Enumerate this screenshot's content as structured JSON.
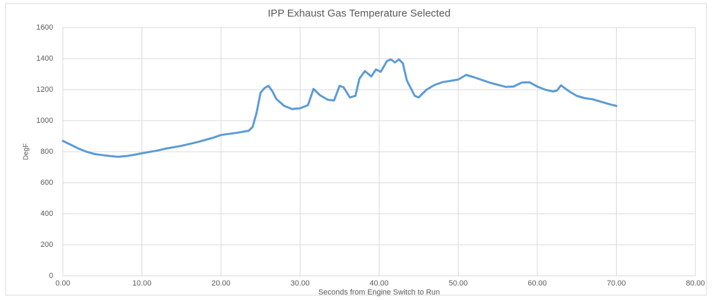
{
  "chart_data": {
    "type": "line",
    "title": "IPP Exhaust Gas Temperature Selected",
    "xlabel": "Seconds from Engine Switch to Run",
    "ylabel": "DegF",
    "grid": true,
    "xlim": [
      0,
      80
    ],
    "xticks": [
      {
        "value": 0,
        "label": "0.00"
      },
      {
        "value": 10,
        "label": "10.00"
      },
      {
        "value": 20,
        "label": "20.00"
      },
      {
        "value": 30,
        "label": "30.00"
      },
      {
        "value": 40,
        "label": "40.00"
      },
      {
        "value": 50,
        "label": "50.00"
      },
      {
        "value": 60,
        "label": "60.00"
      },
      {
        "value": 70,
        "label": "70.00"
      },
      {
        "value": 80,
        "label": "80.00"
      }
    ],
    "ylim": [
      0,
      1600
    ],
    "yticks": [
      0,
      200,
      400,
      600,
      800,
      1000,
      1200,
      1400,
      1600
    ],
    "x": [
      0,
      1,
      2,
      3,
      4,
      5,
      6,
      7,
      8,
      9,
      10,
      12,
      13,
      15,
      17,
      19,
      20,
      22,
      23.5,
      24,
      24.5,
      25,
      25.5,
      26,
      26.5,
      27,
      28,
      29,
      30,
      31,
      31.7,
      32.5,
      33.5,
      34.3,
      35,
      35.5,
      36.3,
      37,
      37.5,
      38.2,
      39,
      39.6,
      40.2,
      41,
      41.5,
      42,
      42.5,
      43,
      43.5,
      44.5,
      45,
      46,
      47,
      48,
      50,
      51,
      52,
      54,
      56,
      57,
      58,
      59,
      60,
      61,
      62,
      62.5,
      63,
      64,
      65,
      66,
      67,
      68,
      69,
      70
    ],
    "series": [
      {
        "color": "#5b9bd5",
        "values": [
          870,
          845,
          820,
          800,
          785,
          778,
          772,
          767,
          772,
          780,
          790,
          808,
          820,
          838,
          862,
          890,
          908,
          922,
          935,
          960,
          1050,
          1180,
          1210,
          1225,
          1190,
          1140,
          1095,
          1075,
          1080,
          1100,
          1205,
          1165,
          1135,
          1130,
          1225,
          1215,
          1150,
          1160,
          1270,
          1320,
          1285,
          1330,
          1315,
          1385,
          1395,
          1375,
          1395,
          1370,
          1260,
          1160,
          1150,
          1200,
          1230,
          1248,
          1265,
          1295,
          1280,
          1245,
          1218,
          1220,
          1245,
          1248,
          1220,
          1200,
          1188,
          1195,
          1228,
          1190,
          1160,
          1145,
          1138,
          1123,
          1108,
          1095
        ]
      }
    ]
  }
}
